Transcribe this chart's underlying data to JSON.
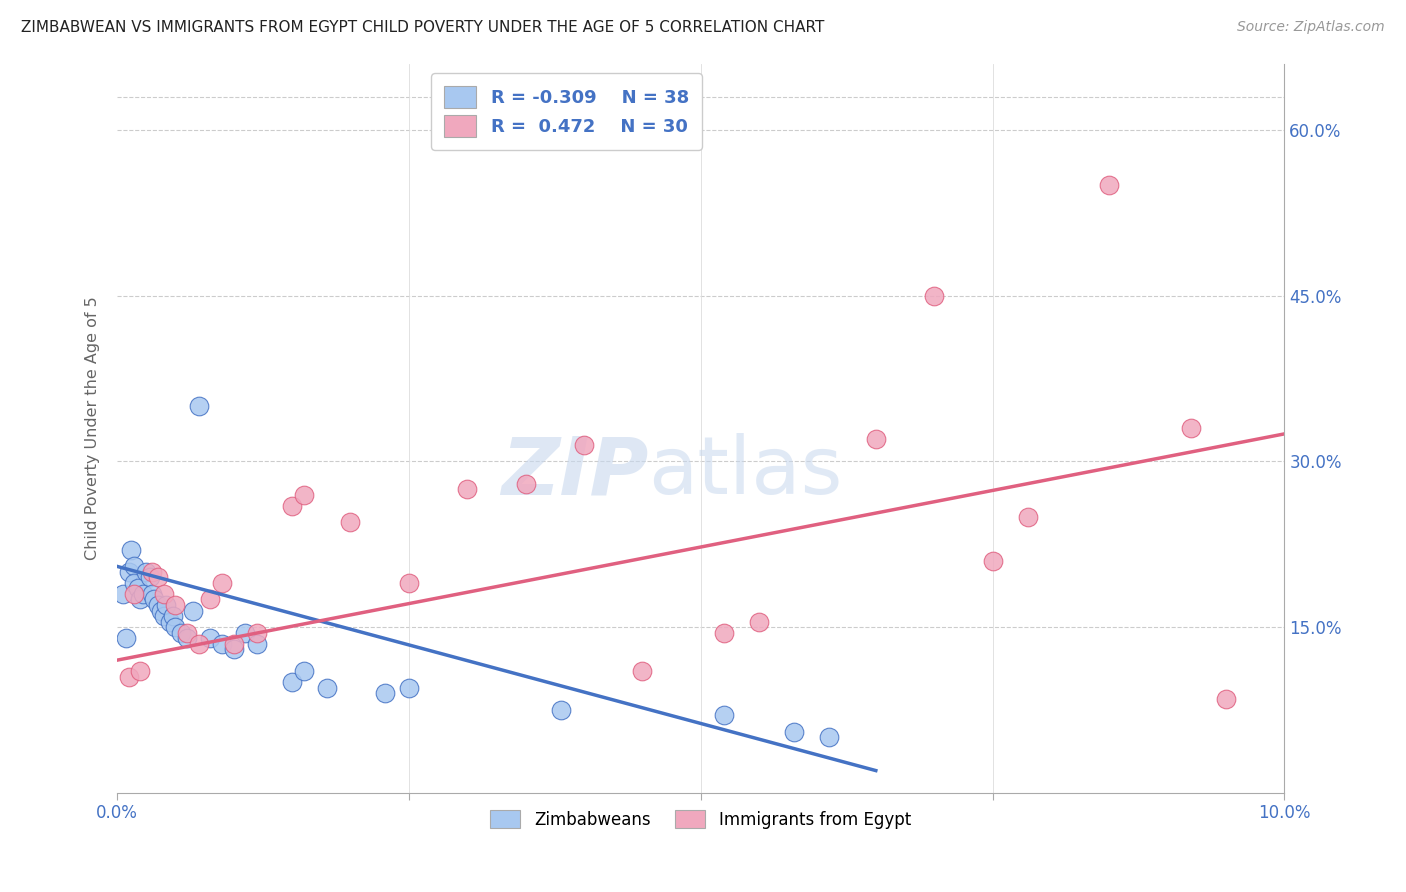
{
  "title": "ZIMBABWEAN VS IMMIGRANTS FROM EGYPT CHILD POVERTY UNDER THE AGE OF 5 CORRELATION CHART",
  "source": "Source: ZipAtlas.com",
  "ylabel": "Child Poverty Under the Age of 5",
  "right_yticks": [
    15.0,
    30.0,
    45.0,
    60.0
  ],
  "blue_color": "#a8c8f0",
  "pink_color": "#f0a8be",
  "blue_line_color": "#4472c4",
  "pink_line_color": "#e06080",
  "xmin": 0.0,
  "xmax": 10.0,
  "ymin": 0.0,
  "ymax": 66.0,
  "zimbabwean_x": [
    0.05,
    0.08,
    0.1,
    0.12,
    0.15,
    0.15,
    0.18,
    0.2,
    0.22,
    0.25,
    0.28,
    0.3,
    0.32,
    0.35,
    0.38,
    0.4,
    0.42,
    0.45,
    0.48,
    0.5,
    0.55,
    0.6,
    0.65,
    0.7,
    0.8,
    0.9,
    1.0,
    1.1,
    1.2,
    1.5,
    1.6,
    1.8,
    2.3,
    2.5,
    3.8,
    5.2,
    5.8,
    6.1
  ],
  "zimbabwean_y": [
    18.0,
    14.0,
    20.0,
    22.0,
    20.5,
    19.0,
    18.5,
    17.5,
    18.0,
    20.0,
    19.5,
    18.0,
    17.5,
    17.0,
    16.5,
    16.0,
    17.0,
    15.5,
    16.0,
    15.0,
    14.5,
    14.0,
    16.5,
    35.0,
    14.0,
    13.5,
    13.0,
    14.5,
    13.5,
    10.0,
    11.0,
    9.5,
    9.0,
    9.5,
    7.5,
    7.0,
    5.5,
    5.0
  ],
  "egypt_x": [
    0.1,
    0.15,
    0.2,
    0.3,
    0.35,
    0.4,
    0.5,
    0.6,
    0.7,
    0.8,
    0.9,
    1.0,
    1.2,
    1.5,
    1.6,
    2.0,
    2.5,
    3.0,
    3.5,
    4.0,
    4.5,
    5.2,
    5.5,
    6.5,
    7.0,
    7.5,
    7.8,
    8.5,
    9.2,
    9.5
  ],
  "egypt_y": [
    10.5,
    18.0,
    11.0,
    20.0,
    19.5,
    18.0,
    17.0,
    14.5,
    13.5,
    17.5,
    19.0,
    13.5,
    14.5,
    26.0,
    27.0,
    24.5,
    19.0,
    27.5,
    28.0,
    31.5,
    11.0,
    14.5,
    15.5,
    32.0,
    45.0,
    21.0,
    25.0,
    55.0,
    33.0,
    8.5
  ],
  "blue_trend_x0": 0.0,
  "blue_trend_y0": 20.5,
  "blue_trend_x1": 6.5,
  "blue_trend_y1": 2.0,
  "pink_trend_x0": 0.0,
  "pink_trend_y0": 12.0,
  "pink_trend_x1": 10.0,
  "pink_trend_y1": 32.5
}
